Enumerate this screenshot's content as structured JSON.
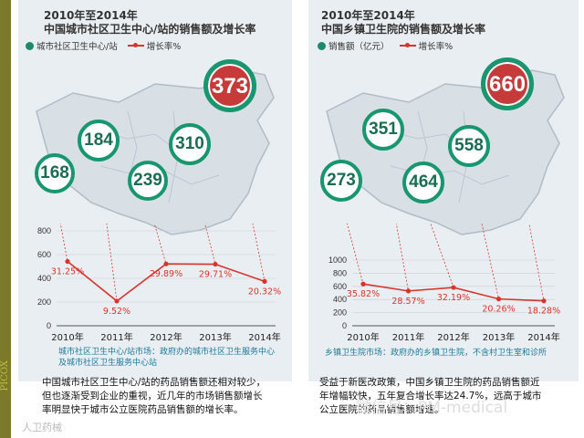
{
  "side_label": "PICOX",
  "left": {
    "title_line1": "2010年至2014年",
    "title_line2": "中国城市社区卫生中心/站的销售额及增长率",
    "legend_bar": "城市社区卫生中心/站",
    "legend_line": "增长率%",
    "subnote_line1": "城市社区卫生中心/站市场：政府办的城市社区卫生服务中心",
    "subnote_line2": "及城市社区卫生服务中心站",
    "body_line1": "中国城市社区卫生中心/站的药品销售额还相对较少，",
    "body_line2": "但也逐渐受到企业的重视，近几年的市场销售额增长",
    "body_line3": "率明显快于城市公立医院药品销售额的增长率。"
  },
  "right": {
    "title_line1": "2010年至2014年",
    "title_line2": "中国乡镇卫生院的销售额及增长率",
    "legend_bar": "销售额（亿元）",
    "legend_line": "增长率%",
    "subnote_line1": "乡镇卫生院市场：政府办的乡镇卫生院，不含村卫生室和诊所",
    "body_line1": "受益于新医改政策，中国乡镇卫生院的药品销售额近",
    "body_line2": "年增幅较快，五年复合增长率达24.7%，远高于城市",
    "body_line3": "公立医院的药品销售额增速。"
  },
  "watermark": "微信号：PM-medical",
  "watermark2": "人卫药械",
  "colors": {
    "accent_green": "#18966e",
    "accent_red": "#d9342b",
    "highlight_red": "#c63a3a"
  },
  "chart_data": [
    {
      "type": "line",
      "title": "中国城市社区卫生中心/站的销售额及增长率",
      "categories": [
        "2010年",
        "2011年",
        "2012年",
        "2013年",
        "2014年"
      ],
      "bubble_values": [
        168,
        184,
        239,
        310,
        373
      ],
      "series": [
        {
          "name": "城市社区卫生中心/站",
          "values": [
            168,
            184,
            239,
            310,
            373
          ]
        },
        {
          "name": "增长率%",
          "values": [
            31.25,
            9.52,
            29.89,
            29.71,
            20.32
          ],
          "labels": [
            "31.25%",
            "9.52%",
            "29.89%",
            "29.71%",
            "20.32%"
          ]
        }
      ],
      "y_ticks": [
        "0",
        "200",
        "400",
        "600",
        "800"
      ],
      "ylim": [
        0,
        800
      ]
    },
    {
      "type": "line",
      "title": "中国乡镇卫生院的销售额及增长率",
      "categories": [
        "2010年",
        "2011年",
        "2012年",
        "2013年",
        "2014年"
      ],
      "bubble_values": [
        273,
        351,
        464,
        558,
        660
      ],
      "series": [
        {
          "name": "销售额（亿元）",
          "values": [
            273,
            351,
            464,
            558,
            660
          ]
        },
        {
          "name": "增长率%",
          "values": [
            35.82,
            28.57,
            32.19,
            20.26,
            18.28
          ],
          "labels": [
            "35.82%",
            "28.57%",
            "32.19%",
            "20.26%",
            "18.28%"
          ]
        }
      ],
      "y_ticks": [
        "0",
        "200",
        "400",
        "600",
        "800",
        "1000"
      ],
      "ylim": [
        0,
        1000
      ]
    }
  ]
}
